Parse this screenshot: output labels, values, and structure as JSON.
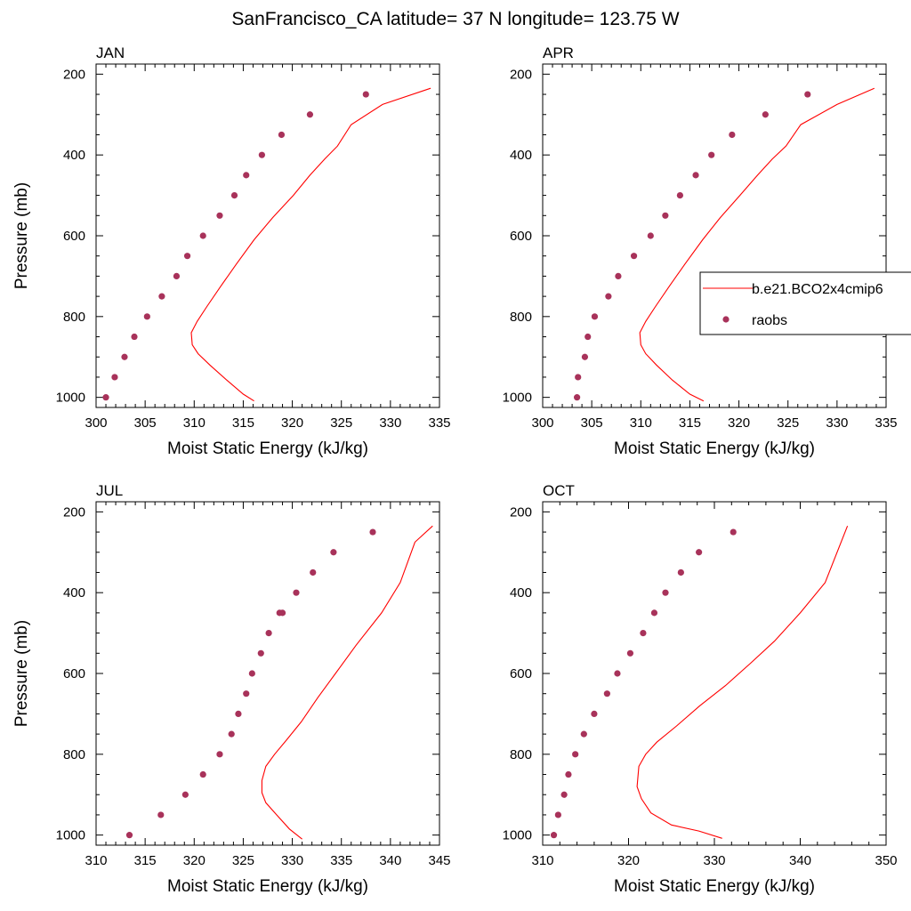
{
  "title": "SanFrancisco_CA  latitude= 37 N longitude= 123.75 W",
  "colors": {
    "model": "#ff0000",
    "obs": "#a8325a",
    "axis": "#000000"
  },
  "legend": {
    "placement": "right-middle of APR panel",
    "entries": [
      {
        "label": "b.e21.BCO2x4cmip6",
        "marker": "line",
        "color": "#ff0000"
      },
      {
        "label": "raobs",
        "marker": "dot",
        "color": "#a8325a"
      }
    ]
  },
  "chart_data": [
    {
      "type": "line",
      "title": "JAN",
      "xlabel": "Moist Static Energy (kJ/kg)",
      "ylabel": "Pressure (mb)",
      "xlim": [
        300,
        335
      ],
      "ylim": [
        1000,
        200
      ],
      "y_reversed": true,
      "xticks": [
        300,
        305,
        310,
        315,
        320,
        325,
        330,
        335
      ],
      "yticks": [
        200,
        400,
        600,
        800,
        1000
      ],
      "series": [
        {
          "name": "b.e21.BCO2x4cmip6",
          "kind": "line",
          "x": [
            316.1,
            315.0,
            313.3,
            311.6,
            310.4,
            309.8,
            309.7,
            310.3,
            311.3,
            312.7,
            314.3,
            316.1,
            318.0,
            320.1,
            321.8,
            323.3,
            324.6,
            326.0,
            329.2,
            334.1
          ],
          "y": [
            1009,
            992,
            957,
            920,
            892,
            870,
            840,
            812,
            775,
            725,
            670,
            610,
            555,
            500,
            450,
            410,
            378,
            325,
            275,
            235
          ]
        },
        {
          "name": "raobs",
          "kind": "scatter",
          "x": [
            301.0,
            301.9,
            302.9,
            303.9,
            305.2,
            306.7,
            308.2,
            309.3,
            310.9,
            312.6,
            314.1,
            315.3,
            316.9,
            318.9,
            321.8,
            327.5
          ],
          "y": [
            1000,
            950,
            900,
            850,
            800,
            750,
            700,
            650,
            600,
            550,
            500,
            450,
            400,
            350,
            300,
            250
          ]
        }
      ]
    },
    {
      "type": "line",
      "title": "APR",
      "xlabel": "Moist Static Energy (kJ/kg)",
      "ylabel": "",
      "xlim": [
        300,
        335
      ],
      "ylim": [
        1000,
        200
      ],
      "y_reversed": true,
      "xticks": [
        300,
        305,
        310,
        315,
        320,
        325,
        330,
        335
      ],
      "yticks": [
        200,
        400,
        600,
        800,
        1000
      ],
      "series": [
        {
          "name": "b.e21.BCO2x4cmip6",
          "kind": "line",
          "x": [
            316.4,
            315.0,
            313.2,
            311.6,
            310.5,
            310.0,
            309.9,
            310.5,
            311.5,
            312.9,
            314.5,
            316.3,
            318.1,
            320.1,
            321.9,
            323.4,
            324.8,
            326.3,
            330.0,
            333.8
          ],
          "y": [
            1009,
            992,
            957,
            920,
            892,
            870,
            840,
            812,
            775,
            725,
            670,
            610,
            555,
            500,
            450,
            410,
            378,
            325,
            275,
            235
          ]
        },
        {
          "name": "raobs",
          "kind": "scatter",
          "x": [
            303.5,
            303.6,
            304.3,
            304.6,
            305.3,
            306.7,
            307.7,
            309.3,
            311.0,
            312.5,
            314.0,
            315.6,
            317.2,
            319.3,
            322.7,
            327.0
          ],
          "y": [
            1000,
            950,
            900,
            850,
            800,
            750,
            700,
            650,
            600,
            550,
            500,
            450,
            400,
            350,
            300,
            250
          ]
        }
      ]
    },
    {
      "type": "line",
      "title": "JUL",
      "xlabel": "Moist Static Energy (kJ/kg)",
      "ylabel": "Pressure (mb)",
      "xlim": [
        310,
        345
      ],
      "ylim": [
        1000,
        200
      ],
      "y_reversed": true,
      "xticks": [
        310,
        315,
        320,
        325,
        330,
        335,
        340,
        345
      ],
      "yticks": [
        200,
        400,
        600,
        800,
        1000
      ],
      "series": [
        {
          "name": "b.e21.BCO2x4cmip6",
          "kind": "line",
          "x": [
            331.0,
            329.7,
            328.4,
            327.3,
            326.9,
            326.9,
            327.3,
            328.2,
            329.4,
            330.9,
            332.6,
            334.4,
            336.5,
            339.1,
            341.0,
            342.5,
            344.3
          ],
          "y": [
            1010,
            985,
            950,
            920,
            895,
            865,
            830,
            800,
            765,
            720,
            660,
            600,
            530,
            450,
            375,
            275,
            235
          ]
        },
        {
          "name": "raobs",
          "kind": "scatter",
          "x": [
            313.4,
            316.6,
            319.1,
            320.9,
            322.6,
            323.8,
            324.5,
            325.3,
            325.9,
            326.8,
            327.6,
            328.7,
            329.0,
            330.4,
            332.1,
            334.2,
            338.2
          ],
          "y": [
            1000,
            950,
            900,
            850,
            800,
            750,
            700,
            650,
            600,
            550,
            500,
            450,
            450,
            400,
            350,
            300,
            250
          ]
        }
      ]
    },
    {
      "type": "line",
      "title": "OCT",
      "xlabel": "Moist Static Energy (kJ/kg)",
      "ylabel": "",
      "xlim": [
        310,
        350
      ],
      "ylim": [
        1000,
        200
      ],
      "y_reversed": true,
      "xticks": [
        310,
        320,
        330,
        340,
        350
      ],
      "yticks": [
        200,
        400,
        600,
        800,
        1000
      ],
      "series": [
        {
          "name": "b.e21.BCO2x4cmip6",
          "kind": "line",
          "x": [
            330.9,
            328.2,
            325.0,
            322.6,
            321.5,
            321.0,
            321.2,
            322.0,
            323.3,
            325.6,
            328.3,
            331.3,
            334.2,
            337.0,
            340.0,
            342.9,
            345.5
          ],
          "y": [
            1008,
            990,
            975,
            945,
            910,
            880,
            830,
            800,
            770,
            730,
            680,
            630,
            575,
            520,
            450,
            375,
            235
          ]
        },
        {
          "name": "raobs",
          "kind": "scatter",
          "x": [
            311.3,
            311.8,
            312.5,
            313.0,
            313.8,
            314.8,
            316.0,
            317.5,
            318.7,
            320.2,
            321.7,
            323.0,
            324.3,
            326.1,
            328.2,
            332.2
          ],
          "y": [
            1000,
            950,
            900,
            850,
            800,
            750,
            700,
            650,
            600,
            550,
            500,
            450,
            400,
            350,
            300,
            250
          ]
        }
      ]
    }
  ]
}
